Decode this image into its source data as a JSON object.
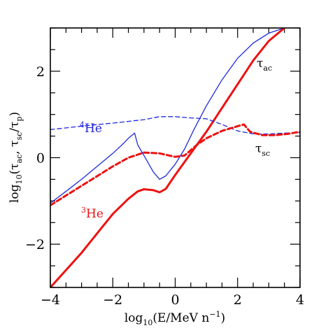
{
  "chart_data": {
    "type": "line",
    "title": "",
    "xlabel_parts": [
      "log",
      "10",
      "(E/MeV n",
      "−1",
      ")"
    ],
    "ylabel_parts": [
      "log",
      "10",
      "(τ",
      "ac",
      ", τ",
      "sc",
      "/τ",
      "p",
      ")"
    ],
    "xlim": [
      -4,
      4
    ],
    "ylim": [
      -3,
      3
    ],
    "x_ticks": [
      -4,
      -2,
      0,
      2,
      4
    ],
    "x_tick_labels": [
      "−4",
      "−2",
      "0",
      "2",
      "4"
    ],
    "y_ticks": [
      -2,
      0,
      2
    ],
    "y_tick_labels": [
      "−2",
      "0",
      "2"
    ],
    "grid": false,
    "annotations": [
      {
        "id": "tau-ac",
        "text": "τ",
        "sub": "ac",
        "color": "#000000"
      },
      {
        "id": "tau-sc",
        "text": "τ",
        "sub": "sc",
        "color": "#000000"
      },
      {
        "id": "he4",
        "text": "He",
        "sup": "4",
        "color": "#2222dd"
      },
      {
        "id": "he3",
        "text": "He",
        "sup": "3",
        "color": "#ee1111"
      }
    ],
    "series": [
      {
        "id": "he4_tau_ac",
        "color": "#1f2bdc",
        "style": "solid",
        "x": [
          -4.0,
          -3.5,
          -3.0,
          -2.5,
          -2.0,
          -1.7,
          -1.5,
          -1.3,
          -1.2,
          -1.0,
          -0.7,
          -0.5,
          -0.3,
          0.0,
          0.3,
          0.6,
          1.0,
          1.5,
          2.0,
          2.5,
          3.0,
          3.5
        ],
        "y": [
          -1.05,
          -0.78,
          -0.5,
          -0.2,
          0.1,
          0.3,
          0.45,
          0.57,
          0.3,
          0.05,
          -0.33,
          -0.5,
          -0.42,
          -0.15,
          0.2,
          0.65,
          1.2,
          1.8,
          2.3,
          2.65,
          2.88,
          3.0
        ]
      },
      {
        "id": "he3_tau_ac",
        "color": "#ee1111",
        "style": "solid",
        "x": [
          -4.0,
          -3.5,
          -3.0,
          -2.5,
          -2.0,
          -1.5,
          -1.2,
          -1.0,
          -0.7,
          -0.5,
          -0.3,
          0.0,
          0.5,
          1.0,
          1.5,
          2.0,
          2.5,
          3.0,
          3.5
        ],
        "y": [
          -3.0,
          -2.6,
          -2.2,
          -1.75,
          -1.3,
          -0.95,
          -0.78,
          -0.73,
          -0.75,
          -0.8,
          -0.72,
          -0.4,
          0.1,
          0.6,
          1.15,
          1.7,
          2.25,
          2.7,
          3.0
        ]
      },
      {
        "id": "he4_tau_sc",
        "color": "#1f2bdc",
        "style": "dashed",
        "x": [
          -4.0,
          -3.0,
          -2.0,
          -1.0,
          -0.5,
          0.0,
          0.5,
          1.0,
          1.5,
          2.0,
          2.5,
          3.0,
          3.5,
          4.0
        ],
        "y": [
          0.65,
          0.73,
          0.8,
          0.88,
          0.95,
          0.95,
          0.92,
          0.9,
          0.77,
          0.62,
          0.55,
          0.55,
          0.57,
          0.58
        ]
      },
      {
        "id": "he3_tau_sc",
        "color": "#ee1111",
        "style": "dashed",
        "x": [
          -4.0,
          -3.0,
          -2.0,
          -1.5,
          -1.0,
          -0.5,
          0.0,
          0.3,
          0.7,
          1.0,
          1.5,
          2.0,
          2.2,
          2.4,
          2.8,
          3.2,
          3.6,
          4.0
        ],
        "y": [
          -1.1,
          -0.65,
          -0.2,
          0.0,
          0.12,
          0.1,
          0.02,
          0.05,
          0.3,
          0.45,
          0.62,
          0.73,
          0.77,
          0.6,
          0.52,
          0.52,
          0.55,
          0.6
        ]
      }
    ]
  }
}
